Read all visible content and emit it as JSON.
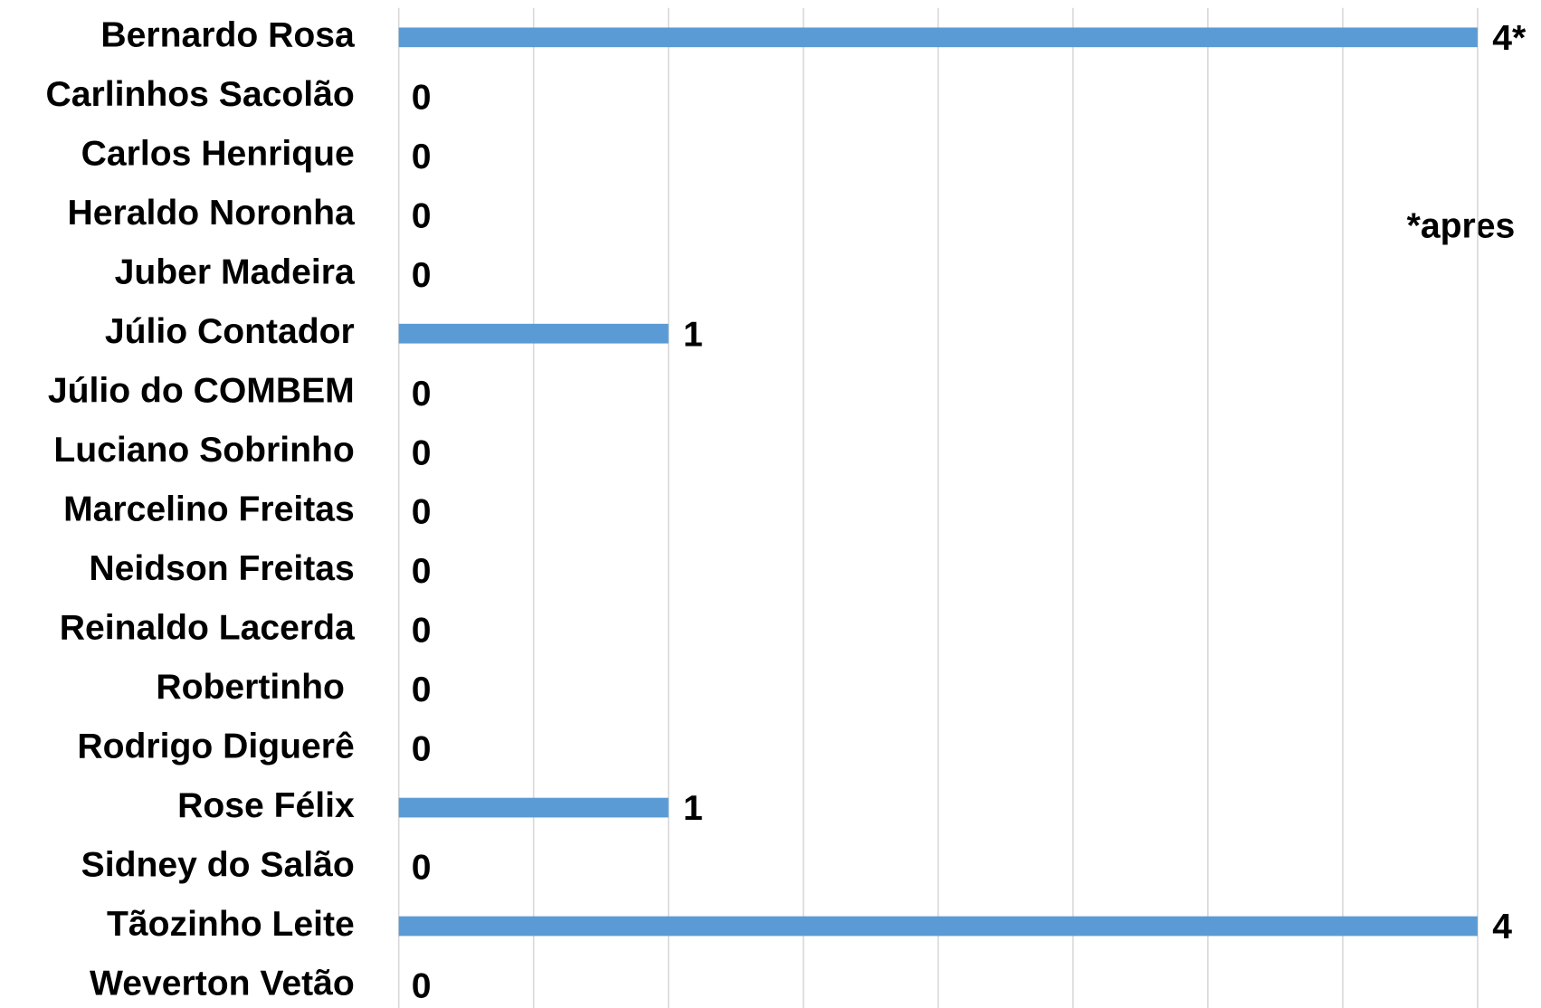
{
  "chart_data": {
    "type": "bar",
    "orientation": "horizontal",
    "categories": [
      "Bernardo Rosa",
      "Carlinhos Sacolão",
      "Carlos Henrique",
      "Heraldo Noronha",
      "Juber Madeira",
      "Júlio Contador",
      "Júlio do COMBEM",
      "Luciano Sobrinho",
      "Marcelino Freitas",
      "Neidson Freitas",
      "Reinaldo Lacerda",
      "Robertinho ",
      "Rodrigo Diguerê",
      "Rose Félix",
      "Sidney do Salão",
      "Tãozinho Leite",
      "Weverton Vetão"
    ],
    "values": [
      4,
      0,
      0,
      0,
      0,
      1,
      0,
      0,
      0,
      0,
      0,
      0,
      0,
      1,
      0,
      4,
      0
    ],
    "value_labels": [
      "4*",
      "0",
      "0",
      "0",
      "0",
      "1",
      "0",
      "0",
      "0",
      "0",
      "0",
      "0",
      "0",
      "1",
      "0",
      "4",
      "0"
    ],
    "color": "#5b9bd5",
    "xlim": [
      0,
      4
    ],
    "xticks": [
      0,
      0.5,
      1,
      1.5,
      2,
      2.5,
      3,
      3.5,
      4
    ],
    "grid": true,
    "annotation": "*apres"
  }
}
